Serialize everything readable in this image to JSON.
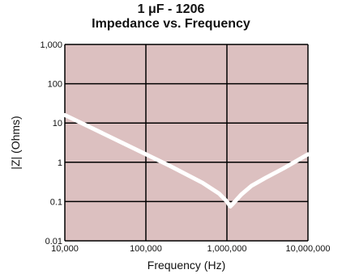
{
  "chart_data": {
    "type": "line",
    "title": "1 μF - 1206",
    "subtitle": "Impedance vs. Frequency",
    "xlabel": "Frequency (Hz)",
    "ylabel": "|Z| (Ohms)",
    "x_scale": "log",
    "y_scale": "log",
    "xlim": [
      10000,
      10000000
    ],
    "ylim": [
      0.01,
      1000
    ],
    "x_ticks": [
      "10,000",
      "100,000",
      "1,000,000",
      "10,000,000"
    ],
    "y_ticks": [
      "0.01",
      "0.1",
      "1",
      "10",
      "100",
      "1,000"
    ],
    "grid": true,
    "legend": "none",
    "colors": {
      "plot_background": "#dcc0c0",
      "grid": "#000000",
      "curve": "#ffffff"
    },
    "series": [
      {
        "x": [
          10000,
          20000,
          50000,
          100000,
          200000,
          500000,
          800000,
          1000000,
          1100000,
          1200000,
          1500000,
          2000000,
          3000000,
          5000000,
          10000000
        ],
        "y": [
          15.9,
          8.0,
          3.2,
          1.6,
          0.8,
          0.3,
          0.16,
          0.1,
          0.075,
          0.09,
          0.15,
          0.25,
          0.4,
          0.7,
          1.6
        ]
      }
    ]
  }
}
